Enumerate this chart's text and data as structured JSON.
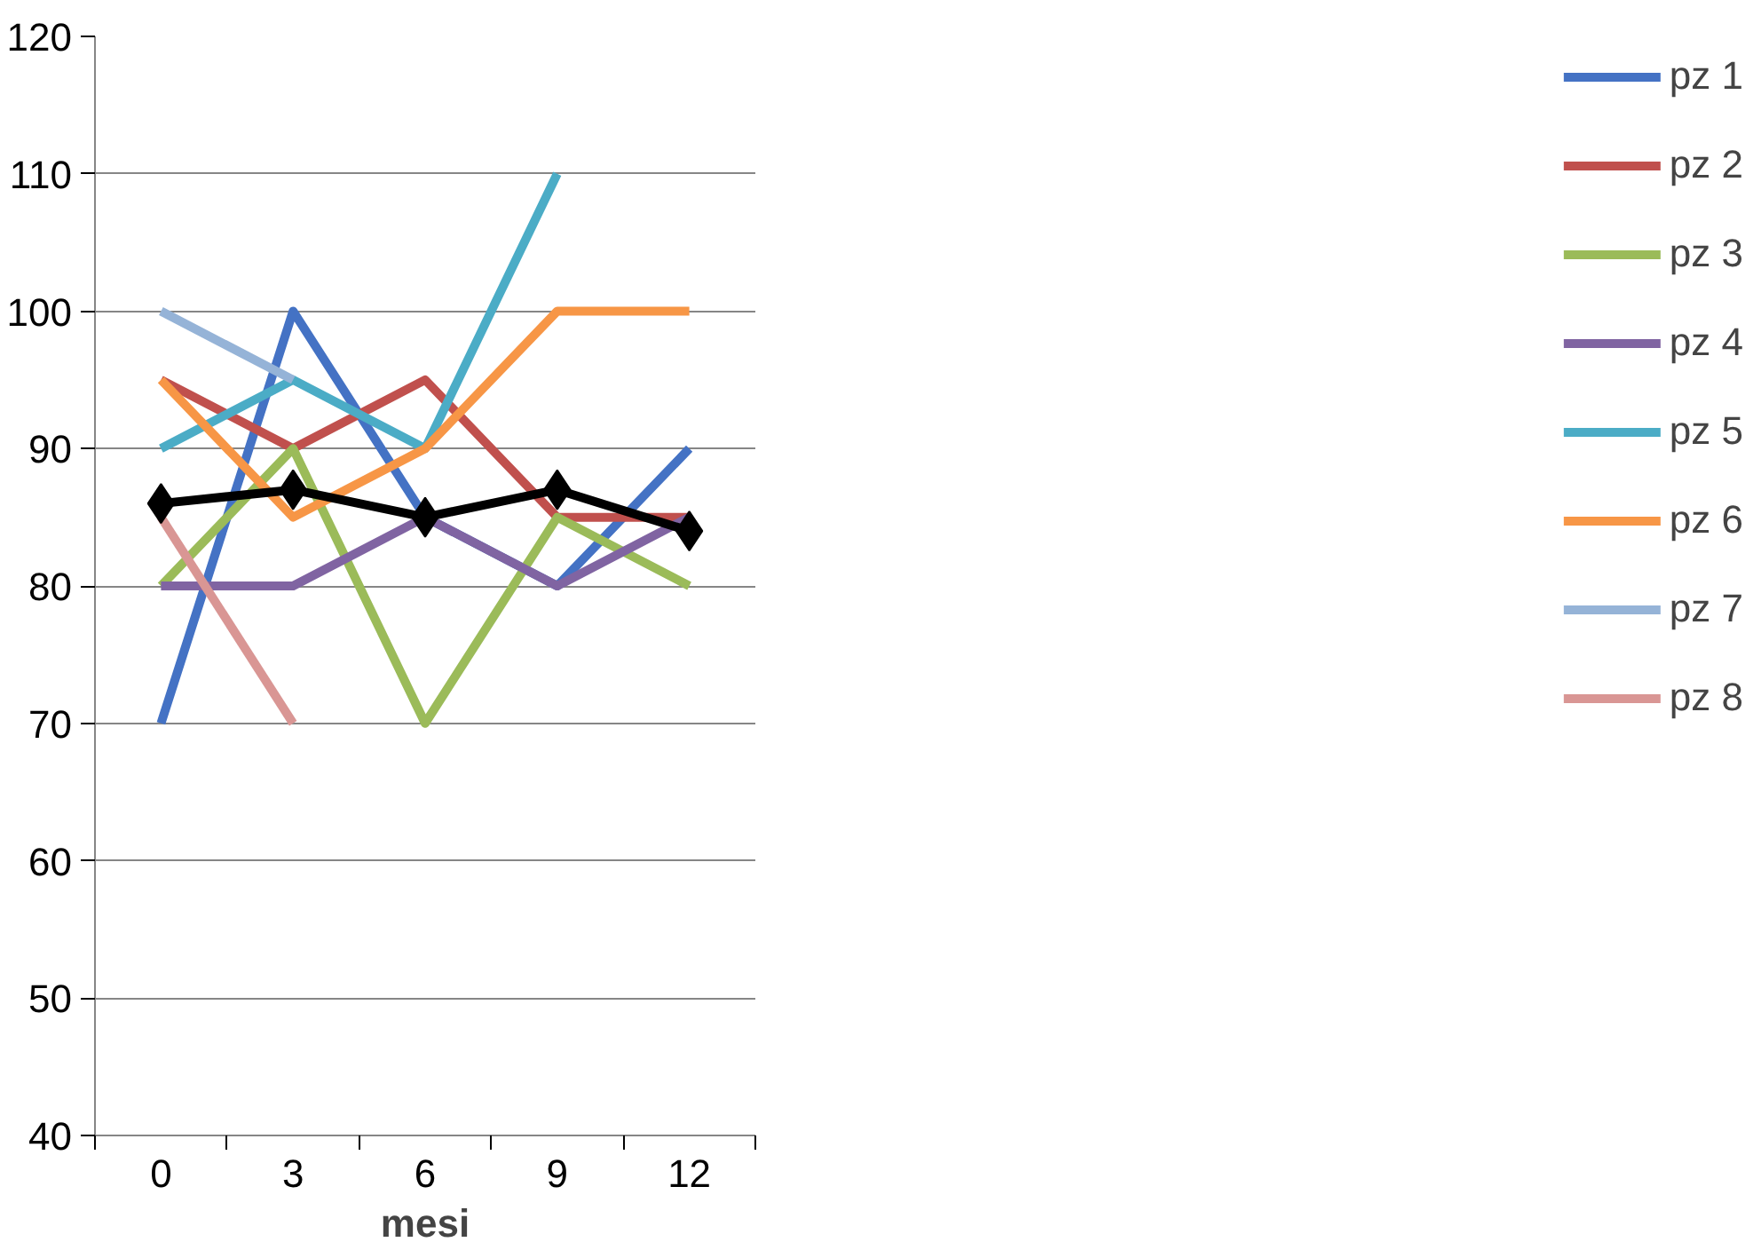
{
  "chart_data": {
    "type": "line",
    "xlabel": "mesi",
    "categories": [
      "0",
      "3",
      "6",
      "9",
      "12"
    ],
    "ylim": [
      40,
      120
    ],
    "yticks": [
      40,
      50,
      60,
      70,
      80,
      90,
      100,
      110,
      120
    ],
    "grid": "y",
    "legend": "right",
    "series": [
      {
        "name": "pz 1",
        "color": "#4472c4",
        "values": [
          70,
          100,
          85,
          80,
          90
        ],
        "marker": "none"
      },
      {
        "name": "pz 2",
        "color": "#c0504d",
        "values": [
          95,
          90,
          95,
          85,
          85
        ],
        "marker": "none"
      },
      {
        "name": "pz 3",
        "color": "#9bbb59",
        "values": [
          80,
          90,
          70,
          85,
          80
        ],
        "marker": "none"
      },
      {
        "name": "pz 4",
        "color": "#8064a2",
        "values": [
          80,
          80,
          85,
          80,
          85
        ],
        "marker": "none"
      },
      {
        "name": "pz 5",
        "color": "#4bacc6",
        "values": [
          90,
          95,
          90,
          110,
          null
        ],
        "marker": "none"
      },
      {
        "name": "pz 6",
        "color": "#f79646",
        "values": [
          95,
          85,
          90,
          100,
          100
        ],
        "marker": "none"
      },
      {
        "name": "pz 7",
        "color": "#95b3d7",
        "values": [
          100,
          95,
          null,
          null,
          null
        ],
        "marker": "none"
      },
      {
        "name": "pz 8",
        "color": "#d99694",
        "values": [
          85,
          70,
          null,
          null,
          null
        ],
        "marker": "none"
      },
      {
        "color": "#000000",
        "values": [
          86,
          87,
          85,
          87,
          84
        ],
        "marker": "diamond"
      }
    ]
  }
}
